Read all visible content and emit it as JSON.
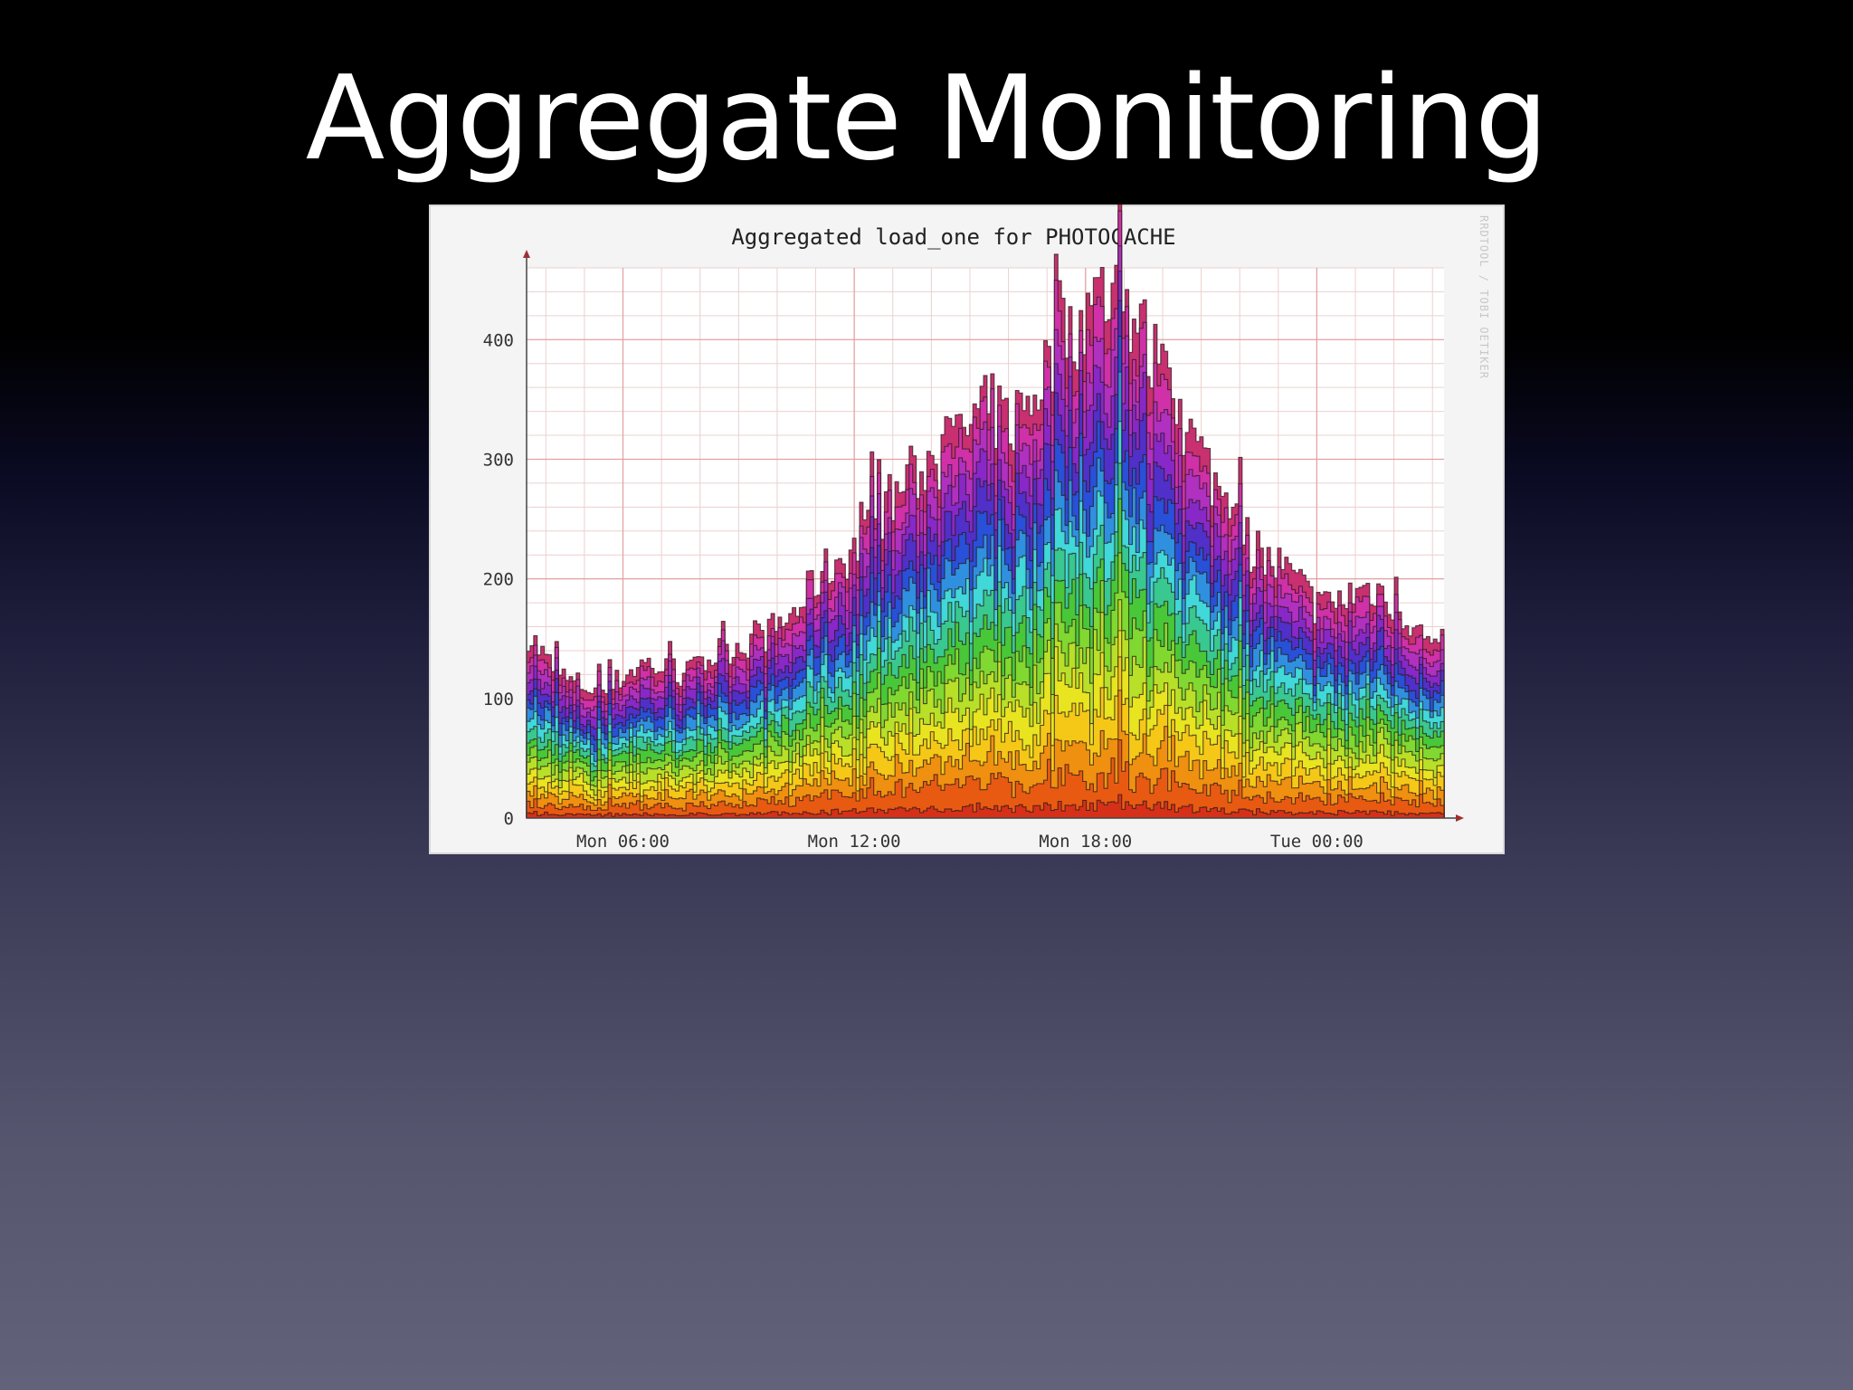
{
  "slide": {
    "title": "Aggregate Monitoring"
  },
  "chart_data": {
    "type": "area",
    "title": "Aggregated load_one for PHOTOCACHE",
    "watermark": "RRDTOOL / TOBI OETIKER",
    "xlabel": "",
    "ylabel": "",
    "x_ticks": [
      "Mon 06:00",
      "Mon 12:00",
      "Mon 18:00",
      "Tue 00:00"
    ],
    "y_ticks": [
      "0",
      "100",
      "200",
      "300",
      "400"
    ],
    "ylim": [
      0,
      460
    ],
    "x_unit": "hours since Mon 00:00",
    "xlim": [
      3.5,
      27.3
    ],
    "grid": true,
    "stacked": true,
    "series_colors": [
      "#d63018",
      "#e85a12",
      "#f09010",
      "#f5c818",
      "#e8e420",
      "#b8e028",
      "#80d830",
      "#48c838",
      "#38c890",
      "#40d8d8",
      "#3090e0",
      "#2850d8",
      "#5030c8",
      "#8828c8",
      "#b030c0",
      "#d030a8",
      "#c83070"
    ],
    "x": [
      3.5,
      4,
      4.5,
      5,
      5.5,
      6,
      6.5,
      7,
      7.5,
      8,
      8.5,
      9,
      9.5,
      10,
      10.5,
      11,
      11.5,
      12,
      12.5,
      13,
      13.5,
      14,
      14.5,
      15,
      15.5,
      16,
      16.5,
      17,
      17.5,
      18,
      18.5,
      19,
      19.5,
      20,
      20.5,
      21,
      21.5,
      22,
      22.5,
      23,
      23.5,
      24,
      24.5,
      25,
      25.5,
      26,
      26.5,
      27,
      27.3
    ],
    "total": [
      155,
      130,
      115,
      110,
      105,
      120,
      130,
      125,
      118,
      128,
      140,
      145,
      150,
      160,
      175,
      200,
      215,
      225,
      245,
      270,
      285,
      295,
      310,
      330,
      340,
      330,
      350,
      380,
      410,
      420,
      440,
      430,
      400,
      360,
      330,
      300,
      270,
      240,
      215,
      210,
      195,
      175,
      180,
      190,
      192,
      180,
      160,
      140,
      125
    ]
  }
}
